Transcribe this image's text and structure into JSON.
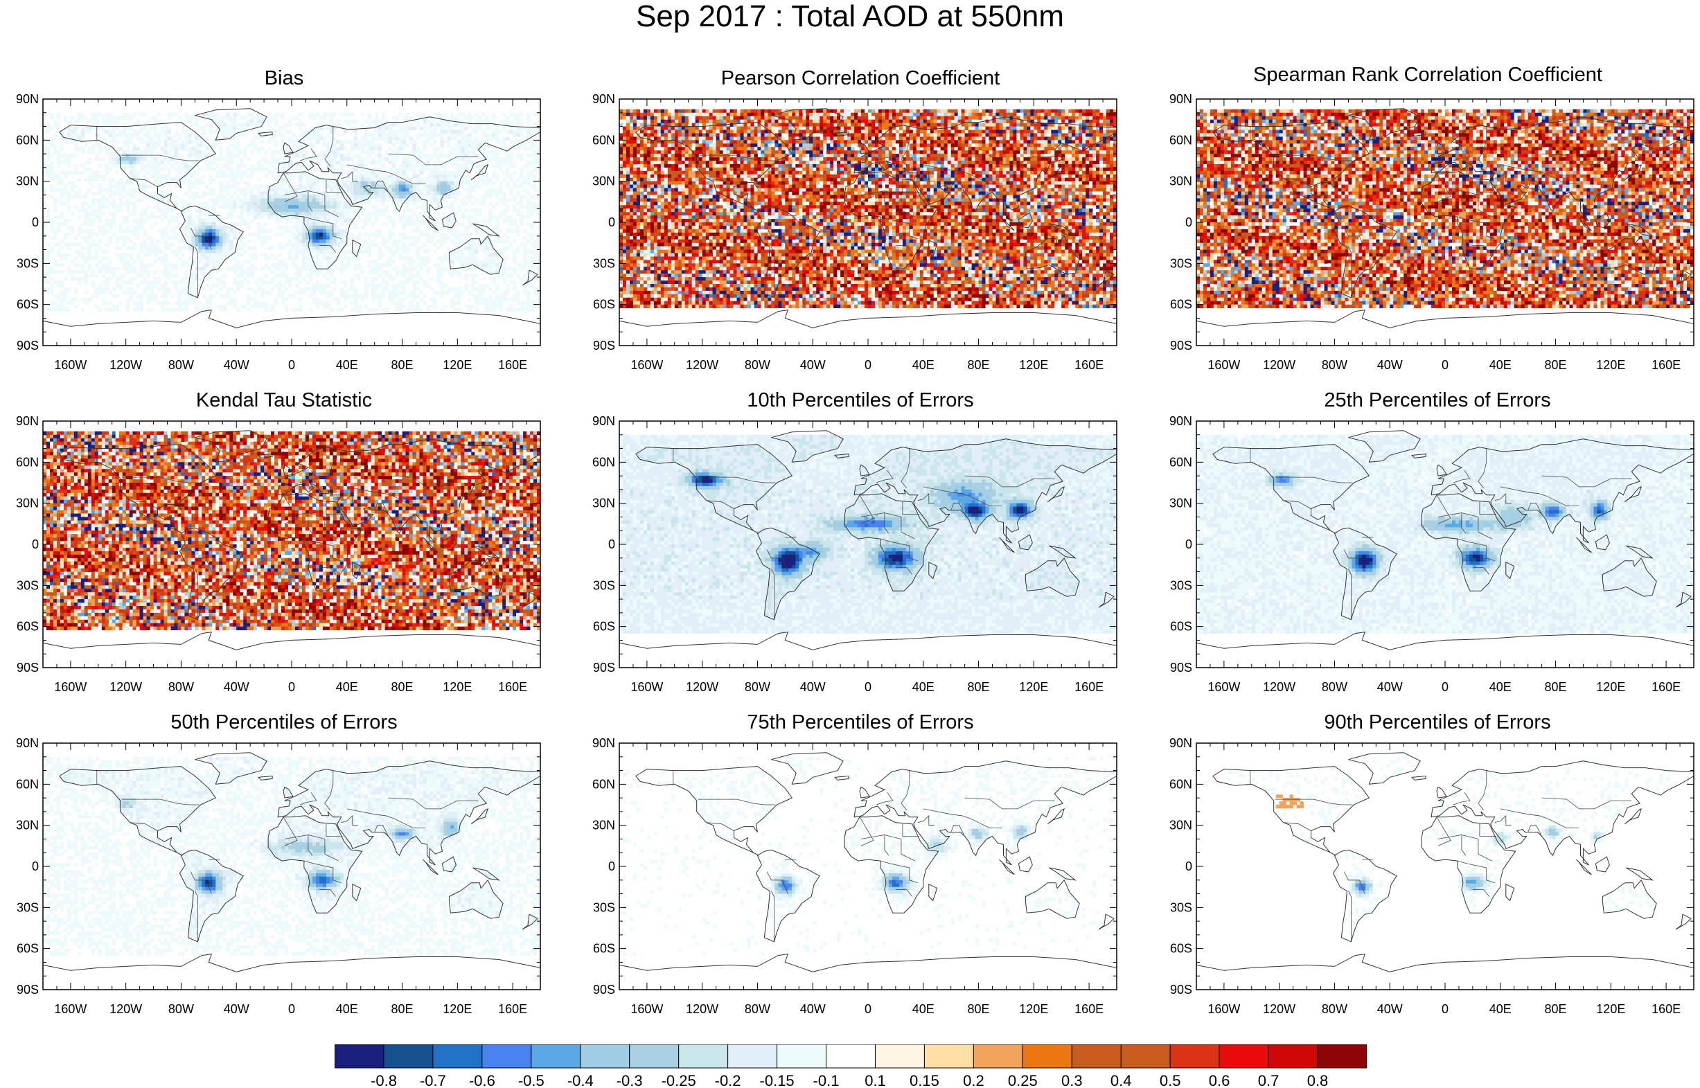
{
  "main_title": "Sep 2017 : Total AOD at 550nm",
  "panels": [
    {
      "title": "Bias",
      "pattern": "bias"
    },
    {
      "title": "Pearson Correlation Coefficient",
      "pattern": "corr"
    },
    {
      "title": "Spearman Rank Correlation Coefficient",
      "pattern": "corr"
    },
    {
      "title": "Kendal Tau Statistic",
      "pattern": "corr"
    },
    {
      "title": "10th Percentiles of Errors",
      "pattern": "p10"
    },
    {
      "title": "25th Percentiles of Errors",
      "pattern": "p25"
    },
    {
      "title": "50th Percentiles of Errors",
      "pattern": "p50"
    },
    {
      "title": "75th Percentiles of Errors",
      "pattern": "p75"
    },
    {
      "title": "90th Percentiles of Errors",
      "pattern": "p90"
    }
  ],
  "lat_labels": [
    "90N",
    "60N",
    "30N",
    "0",
    "30S",
    "60S",
    "90S"
  ],
  "lat_values": [
    90,
    60,
    30,
    0,
    -30,
    -60,
    -90
  ],
  "lon_labels": [
    "160W",
    "120W",
    "80W",
    "40W",
    "0",
    "40E",
    "80E",
    "120E",
    "160E"
  ],
  "lon_values": [
    -160,
    -120,
    -80,
    -40,
    0,
    40,
    80,
    120,
    160
  ],
  "colorbar": {
    "labels": [
      "-0.8",
      "-0.7",
      "-0.6",
      "-0.5",
      "-0.4",
      "-0.3",
      "-0.25",
      "-0.2",
      "-0.15",
      "-0.1",
      "0.1",
      "0.15",
      "0.2",
      "0.25",
      "0.3",
      "0.4",
      "0.5",
      "0.6",
      "0.7",
      "0.8"
    ],
    "colors": [
      "#1b1f7e",
      "#144f8e",
      "#1f72c8",
      "#4a82f0",
      "#5aa8e6",
      "#9fcde6",
      "#a9cfe2",
      "#c9e6ea",
      "#e2eef8",
      "#edfafb",
      "#ffffff",
      "#fdf4e2",
      "#fddfa6",
      "#f2a45c",
      "#ec7611",
      "#c95b1e",
      "#c95b1e",
      "#db3314",
      "#ea0a0a",
      "#cf0606",
      "#8e0404"
    ]
  }
}
